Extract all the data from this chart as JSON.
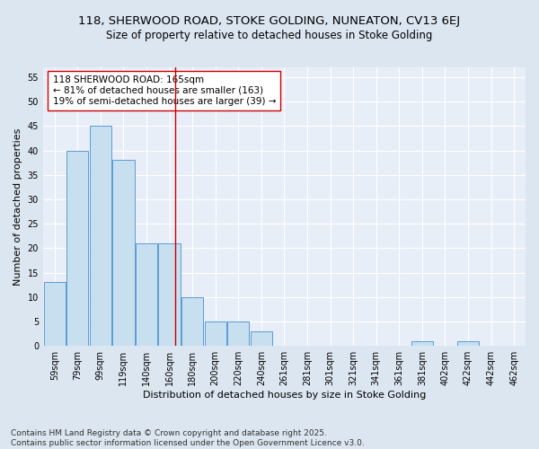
{
  "title1": "118, SHERWOOD ROAD, STOKE GOLDING, NUNEATON, CV13 6EJ",
  "title2": "Size of property relative to detached houses in Stoke Golding",
  "xlabel": "Distribution of detached houses by size in Stoke Golding",
  "ylabel": "Number of detached properties",
  "bin_labels": [
    "59sqm",
    "79sqm",
    "99sqm",
    "119sqm",
    "140sqm",
    "160sqm",
    "180sqm",
    "200sqm",
    "220sqm",
    "240sqm",
    "261sqm",
    "281sqm",
    "301sqm",
    "321sqm",
    "341sqm",
    "361sqm",
    "381sqm",
    "402sqm",
    "422sqm",
    "442sqm",
    "462sqm"
  ],
  "bar_values": [
    13,
    40,
    45,
    38,
    21,
    21,
    10,
    5,
    5,
    3,
    0,
    0,
    0,
    0,
    0,
    0,
    1,
    0,
    1,
    0,
    0
  ],
  "bar_color": "#c8dff0",
  "bar_edgecolor": "#5b9bd5",
  "background_color": "#dce6f0",
  "plot_bg_color": "#e8eef8",
  "ylim": [
    0,
    57
  ],
  "yticks": [
    0,
    5,
    10,
    15,
    20,
    25,
    30,
    35,
    40,
    45,
    50,
    55
  ],
  "vline_x": 5.25,
  "vline_color": "#cc0000",
  "annotation_box_text": "118 SHERWOOD ROAD: 165sqm\n← 81% of detached houses are smaller (163)\n19% of semi-detached houses are larger (39) →",
  "footer_text": "Contains HM Land Registry data © Crown copyright and database right 2025.\nContains public sector information licensed under the Open Government Licence v3.0.",
  "grid_color": "#ffffff",
  "title_fontsize": 9.5,
  "subtitle_fontsize": 8.5,
  "axis_label_fontsize": 8,
  "tick_fontsize": 7,
  "annotation_fontsize": 7.5,
  "footer_fontsize": 6.5
}
